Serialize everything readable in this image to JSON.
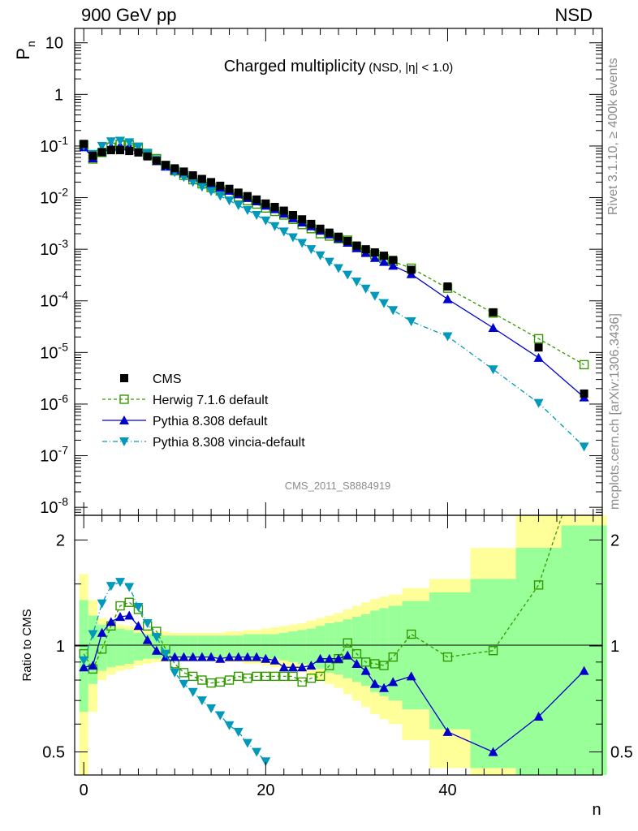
{
  "header": {
    "energy": "900 GeV pp",
    "process": "NSD",
    "title_main": "Charged multiplicity",
    "title_sub": "(NSD, |η| < 1.0)",
    "analysis": "CMS_2011_S8884919",
    "side_rivet": "Rivet 3.1.10, ≥ 400k events",
    "side_site": "mcplots.cern.ch [arXiv:1306.3436]"
  },
  "axes": {
    "ylabel_top_main": "P",
    "ylabel_top_sub": "n",
    "ylabel_bottom": "Ratio to CMS",
    "xlabel": "n",
    "top_ticks": [
      {
        "v": 10,
        "label": "10",
        "sup": ""
      },
      {
        "v": 1,
        "label": "1",
        "sup": ""
      },
      {
        "v": 0.1,
        "label": "10",
        "sup": "-1"
      },
      {
        "v": 0.01,
        "label": "10",
        "sup": "-2"
      },
      {
        "v": 0.001,
        "label": "10",
        "sup": "-3"
      },
      {
        "v": 0.0001,
        "label": "10",
        "sup": "-4"
      },
      {
        "v": 1e-05,
        "label": "10",
        "sup": "-5"
      },
      {
        "v": 1e-06,
        "label": "10",
        "sup": "-6"
      },
      {
        "v": 1e-07,
        "label": "10",
        "sup": "-7"
      },
      {
        "v": 1e-08,
        "label": "10",
        "sup": "-8"
      }
    ],
    "ratio_ticks": [
      "0.5",
      "1",
      "2"
    ],
    "x_ticks": [
      "0",
      "20",
      "40"
    ]
  },
  "chart_data": {
    "type": "scatter",
    "x_range": [
      -1,
      57
    ],
    "y_range": [
      7e-09,
      19
    ],
    "y_log": true,
    "ratio_range": [
      0.43,
      2.35
    ],
    "ratio_log": true,
    "legend_position": "bottom-left",
    "band_yellow": "#ffff99",
    "band_green": "#99ff99",
    "cms": {
      "name": "CMS",
      "color": "#000000",
      "x": [
        0,
        1,
        2,
        3,
        4,
        5,
        6,
        7,
        8,
        9,
        10,
        11,
        12,
        13,
        14,
        15,
        16,
        17,
        18,
        19,
        20,
        21,
        22,
        23,
        24,
        25,
        26,
        27,
        28,
        29,
        30,
        31,
        32,
        33,
        34,
        36,
        40,
        45,
        50,
        55
      ],
      "y": [
        0.11,
        0.065,
        0.076,
        0.083,
        0.083,
        0.08,
        0.075,
        0.063,
        0.052,
        0.043,
        0.037,
        0.032,
        0.027,
        0.023,
        0.02,
        0.017,
        0.0148,
        0.0125,
        0.0107,
        0.0092,
        0.0077,
        0.0066,
        0.0056,
        0.0046,
        0.0038,
        0.0031,
        0.0025,
        0.0021,
        0.00175,
        0.00145,
        0.00118,
        0.001,
        0.00087,
        0.00075,
        0.00062,
        0.0004,
        0.00019,
        6e-05,
        1.25e-05,
        1.6e-06
      ]
    },
    "series": [
      {
        "name": "Herwig 7.1.6 default",
        "color": "#339900",
        "marker": "open-square",
        "dash": "4,3",
        "x": [
          0,
          1,
          2,
          3,
          4,
          5,
          6,
          7,
          8,
          9,
          10,
          11,
          12,
          13,
          14,
          15,
          16,
          17,
          18,
          19,
          20,
          21,
          22,
          23,
          24,
          25,
          26,
          27,
          28,
          29,
          30,
          31,
          32,
          33,
          34,
          36,
          40,
          45,
          50,
          55
        ],
        "y": [
          0.105,
          0.056,
          0.075,
          0.095,
          0.108,
          0.106,
          0.095,
          0.072,
          0.057,
          0.042,
          0.033,
          0.027,
          0.0222,
          0.0185,
          0.0157,
          0.0135,
          0.0119,
          0.0103,
          0.0087,
          0.0075,
          0.0063,
          0.0054,
          0.0046,
          0.0038,
          0.003,
          0.0025,
          0.002,
          0.0018,
          0.0016,
          0.0015,
          0.00112,
          0.0009,
          0.00078,
          0.00066,
          0.00058,
          0.00043,
          0.000176,
          5.8e-05,
          1.85e-05,
          5.8e-06
        ],
        "ratio": [
          0.95,
          0.86,
          0.98,
          1.14,
          1.3,
          1.33,
          1.27,
          1.14,
          1.1,
          0.98,
          0.89,
          0.84,
          0.82,
          0.8,
          0.785,
          0.79,
          0.8,
          0.82,
          0.81,
          0.82,
          0.82,
          0.82,
          0.82,
          0.82,
          0.79,
          0.81,
          0.82,
          0.88,
          0.92,
          1.02,
          0.95,
          0.9,
          0.89,
          0.88,
          0.93,
          1.08,
          0.93,
          0.97,
          1.49,
          3.6
        ]
      },
      {
        "name": "Pythia 8.308 default",
        "color": "#0000cc",
        "marker": "triangle-up",
        "dash": "",
        "x": [
          0,
          1,
          2,
          3,
          4,
          5,
          6,
          7,
          8,
          9,
          10,
          11,
          12,
          13,
          14,
          15,
          16,
          17,
          18,
          19,
          20,
          21,
          22,
          23,
          24,
          25,
          26,
          27,
          28,
          29,
          30,
          31,
          32,
          33,
          34,
          36,
          40,
          45,
          50,
          55
        ],
        "y": [
          0.095,
          0.058,
          0.083,
          0.097,
          0.1,
          0.098,
          0.085,
          0.066,
          0.051,
          0.04,
          0.034,
          0.0295,
          0.0248,
          0.0212,
          0.0184,
          0.0157,
          0.0137,
          0.0116,
          0.0099,
          0.0085,
          0.007,
          0.006,
          0.0049,
          0.004,
          0.0033,
          0.0028,
          0.0023,
          0.00195,
          0.00162,
          0.00134,
          0.00105,
          0.00085,
          0.00068,
          0.00057,
          0.00048,
          0.00033,
          0.000108,
          3e-05,
          7.9e-06,
          1.35e-06
        ],
        "ratio": [
          0.87,
          0.88,
          1.09,
          1.17,
          1.21,
          1.22,
          1.14,
          1.04,
          0.97,
          0.93,
          0.93,
          0.93,
          0.93,
          0.93,
          0.93,
          0.92,
          0.93,
          0.93,
          0.93,
          0.93,
          0.92,
          0.91,
          0.87,
          0.87,
          0.87,
          0.88,
          0.92,
          0.92,
          0.92,
          0.94,
          0.89,
          0.85,
          0.78,
          0.76,
          0.79,
          0.82,
          0.57,
          0.5,
          0.63,
          0.85
        ]
      },
      {
        "name": "Pythia 8.308 vincia-default",
        "color": "#0099bb",
        "marker": "triangle-down",
        "dash": "6,3,1,3",
        "x": [
          0,
          1,
          2,
          3,
          4,
          5,
          6,
          7,
          8,
          9,
          10,
          11,
          12,
          13,
          14,
          15,
          16,
          17,
          18,
          19,
          20,
          21,
          22,
          23,
          24,
          25,
          26,
          27,
          28,
          29,
          30,
          31,
          32,
          33,
          34,
          36,
          40,
          45,
          50,
          55
        ],
        "y": [
          0.1,
          0.07,
          0.1,
          0.123,
          0.126,
          0.118,
          0.097,
          0.073,
          0.055,
          0.041,
          0.031,
          0.025,
          0.02,
          0.0162,
          0.0133,
          0.0108,
          0.0088,
          0.0071,
          0.0057,
          0.0046,
          0.0036,
          0.0028,
          0.0022,
          0.0017,
          0.00132,
          0.001,
          0.00076,
          0.00057,
          0.00043,
          0.00032,
          0.000235,
          0.000172,
          0.000125,
          9e-05,
          6.6e-05,
          4e-05,
          2.05e-05,
          4.7e-06,
          1.05e-06,
          1.5e-07
        ],
        "ratio": [
          0.91,
          1.08,
          1.32,
          1.48,
          1.52,
          1.47,
          1.29,
          1.16,
          1.06,
          0.95,
          0.84,
          0.78,
          0.74,
          0.7,
          0.665,
          0.635,
          0.595,
          0.57,
          0.53,
          0.5,
          0.47
        ]
      }
    ],
    "cms_band_bins": [
      0,
      1,
      2,
      3,
      4,
      5,
      6,
      7,
      8,
      9,
      10,
      11,
      12,
      13,
      14,
      15,
      16,
      17,
      18,
      19,
      20,
      21,
      22,
      23,
      24,
      25,
      26,
      27,
      28,
      29,
      30,
      31,
      32,
      33,
      34,
      36,
      40,
      45,
      50,
      55
    ],
    "cms_band_stat": [
      0.35,
      0.22,
      0.15,
      0.13,
      0.12,
      0.11,
      0.09,
      0.08,
      0.08,
      0.07,
      0.07,
      0.07,
      0.07,
      0.07,
      0.07,
      0.07,
      0.07,
      0.07,
      0.08,
      0.08,
      0.08,
      0.08,
      0.09,
      0.1,
      0.11,
      0.12,
      0.14,
      0.16,
      0.17,
      0.19,
      0.21,
      0.23,
      0.26,
      0.28,
      0.3,
      0.34,
      0.42,
      0.55,
      0.9,
      1.2
    ],
    "cms_band_syst": [
      0.6,
      0.35,
      0.2,
      0.17,
      0.15,
      0.14,
      0.12,
      0.11,
      0.1,
      0.1,
      0.09,
      0.09,
      0.09,
      0.09,
      0.09,
      0.09,
      0.1,
      0.1,
      0.11,
      0.11,
      0.12,
      0.13,
      0.14,
      0.15,
      0.16,
      0.18,
      0.2,
      0.22,
      0.24,
      0.27,
      0.3,
      0.33,
      0.36,
      0.38,
      0.4,
      0.46,
      0.55,
      0.9,
      1.5,
      2.0
    ]
  }
}
